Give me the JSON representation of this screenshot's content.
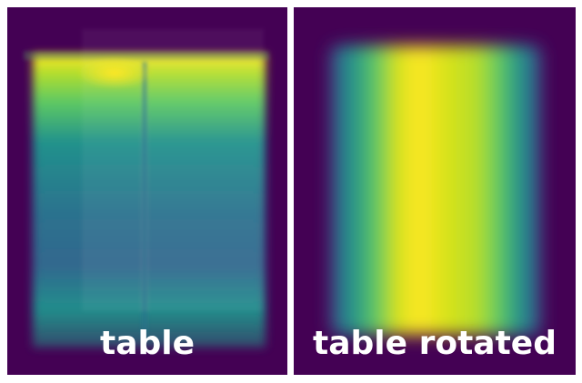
{
  "panels": [
    {
      "label": "table"
    },
    {
      "label": "table rotated"
    }
  ],
  "colors": {
    "background": "#440154",
    "colormap": "viridis",
    "viridis_stops": [
      "#440154",
      "#3b528b",
      "#21918c",
      "#5ec962",
      "#fde725"
    ]
  }
}
